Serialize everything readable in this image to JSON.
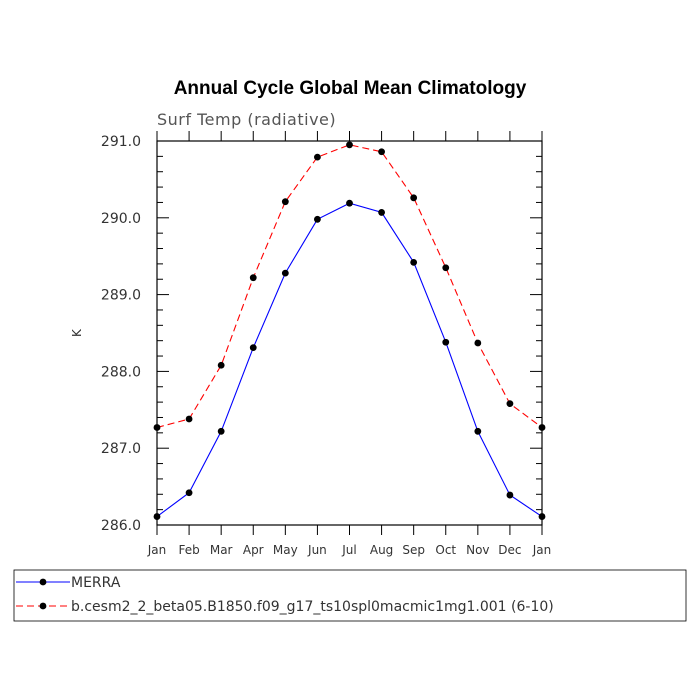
{
  "chart_data": {
    "type": "line",
    "title": "Annual Cycle Global Mean Climatology",
    "subtitle": "Surf Temp (radiative)",
    "xlabel": "",
    "ylabel": "K",
    "categories": [
      "Jan",
      "Feb",
      "Mar",
      "Apr",
      "May",
      "Jun",
      "Jul",
      "Aug",
      "Sep",
      "Oct",
      "Nov",
      "Dec",
      "Jan"
    ],
    "ylim": [
      286.0,
      291.0
    ],
    "yticks": [
      286.0,
      287.0,
      288.0,
      289.0,
      290.0,
      291.0
    ],
    "ytick_labels": [
      "286.0",
      "287.0",
      "288.0",
      "289.0",
      "290.0",
      "291.0"
    ],
    "legend_position": "bottom",
    "series": [
      {
        "name": "MERRA",
        "color": "#0000ff",
        "dash": "solid",
        "marker_color": "#000000",
        "values": [
          286.11,
          286.42,
          287.22,
          288.31,
          289.28,
          289.98,
          290.19,
          290.07,
          289.42,
          288.38,
          287.22,
          286.39,
          286.11
        ]
      },
      {
        "name": "b.cesm2_2_beta05.B1850.f09_g17_ts10spl0macmic1mg1.001 (6-10)",
        "color": "#ff0000",
        "dash": "dashed",
        "marker_color": "#000000",
        "values": [
          287.27,
          287.38,
          288.08,
          289.22,
          290.21,
          290.79,
          290.95,
          290.86,
          290.26,
          289.35,
          288.37,
          287.58,
          287.27
        ]
      }
    ]
  }
}
